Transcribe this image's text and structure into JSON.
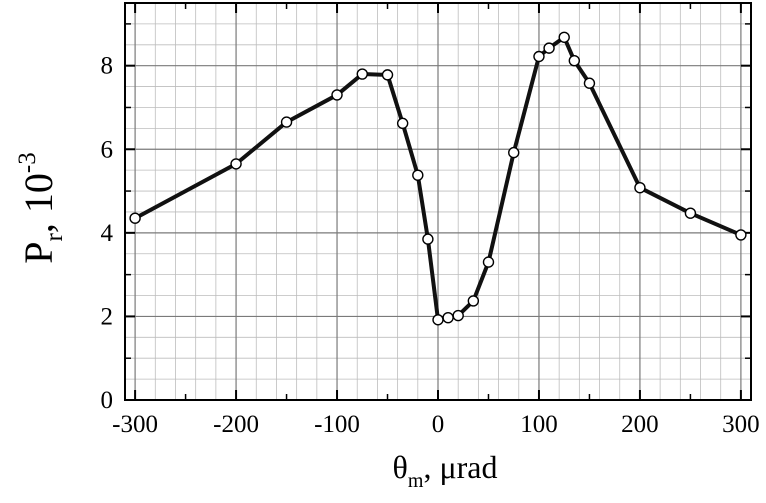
{
  "chart_data": {
    "type": "line",
    "xlabel": {
      "main": "θ",
      "sub": "m",
      "rest": ", μrad"
    },
    "ylabel": {
      "main": "P",
      "sub": "r",
      "rest": ", 10",
      "sup": "-3"
    },
    "xlim": [
      -310,
      310
    ],
    "ylim": [
      0,
      9.5
    ],
    "xticks": [
      -300,
      -200,
      -100,
      0,
      100,
      200,
      300
    ],
    "yticks": [
      0,
      2,
      4,
      6,
      8
    ],
    "xtick_labels": [
      "-300",
      "-200",
      "-100",
      "0",
      "100",
      "200",
      "300"
    ],
    "ytick_labels": [
      "0",
      "2",
      "4",
      "6",
      "8"
    ],
    "grid": true,
    "series": [
      {
        "x": [
          -300,
          -200,
          -150,
          -100,
          -75,
          -50,
          -35,
          -20,
          -10,
          0,
          10,
          20,
          35,
          50,
          75,
          100,
          110,
          125,
          135,
          150,
          200,
          250,
          300
        ],
        "y": [
          4.35,
          5.65,
          6.65,
          7.3,
          7.8,
          7.78,
          6.62,
          5.38,
          3.85,
          1.92,
          1.97,
          2.02,
          2.37,
          3.3,
          5.92,
          8.22,
          8.42,
          8.68,
          8.12,
          7.58,
          5.08,
          4.47,
          3.95
        ]
      }
    ]
  }
}
